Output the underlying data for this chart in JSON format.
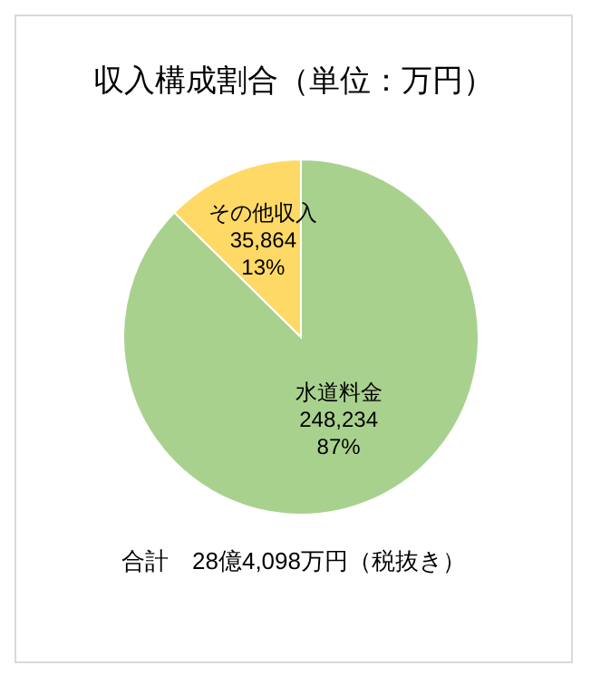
{
  "chart_data": {
    "type": "pie",
    "title": "収入構成割合（単位：万円）",
    "categories": [
      "水道料金",
      "その他収入"
    ],
    "values": [
      248234,
      35864
    ],
    "colors": [
      "#a9d18e",
      "#ffd966"
    ],
    "value_labels": [
      "248,234\n87%",
      "35,864\n13%"
    ],
    "annotations": [
      "合計　28億4,098万円（税抜き）"
    ],
    "legend": false
  }
}
